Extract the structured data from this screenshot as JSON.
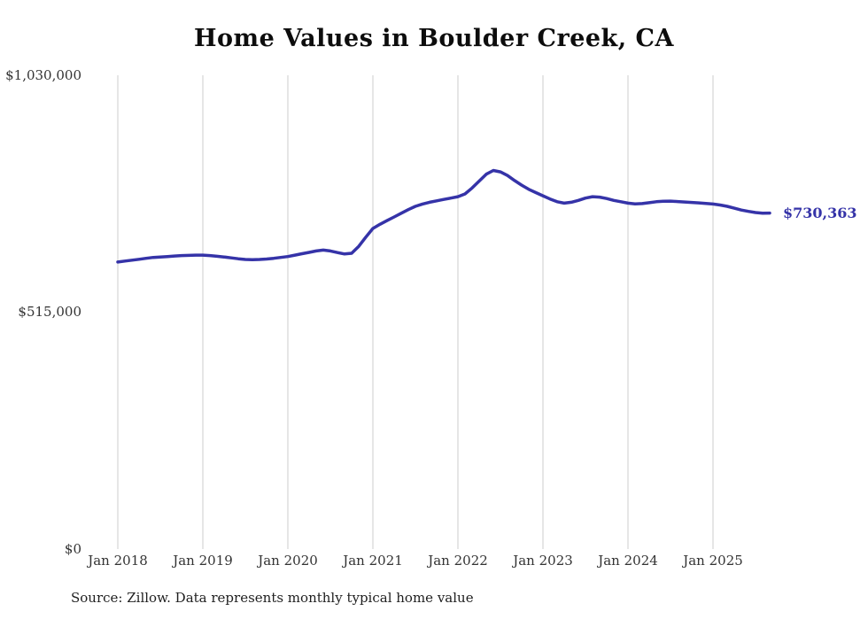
{
  "chart_data": {
    "type": "line",
    "title": "Home Values in Boulder Creek, CA",
    "series_name": "Typical home value",
    "x_interval": "monthly",
    "x_start": "2018-01",
    "x_end": "2025-09",
    "x_ticks": [
      "Jan 2018",
      "Jan 2019",
      "Jan 2020",
      "Jan 2021",
      "Jan 2022",
      "Jan 2023",
      "Jan 2024",
      "Jan 2025"
    ],
    "y_ticks": [
      "$0",
      "$515,000",
      "$1,030,000"
    ],
    "ylim": [
      0,
      1030000
    ],
    "grid": "vertical-only",
    "line_color": "#3533a8",
    "grid_color": "#cccccc",
    "end_label": "$730,363",
    "end_value": 730363,
    "values": [
      624000,
      626000,
      628000,
      630000,
      632000,
      634000,
      635000,
      636000,
      637000,
      638000,
      638500,
      639000,
      639000,
      638000,
      636500,
      635000,
      633000,
      631000,
      629500,
      629000,
      629500,
      630500,
      632000,
      634000,
      636000,
      639000,
      642000,
      645000,
      648000,
      650000,
      648000,
      644500,
      641500,
      643000,
      658000,
      678000,
      697000,
      706000,
      714000,
      722000,
      730000,
      738000,
      745000,
      750000,
      754000,
      757000,
      760000,
      763000,
      766000,
      772000,
      785000,
      800000,
      815000,
      823000,
      820000,
      812000,
      801000,
      791000,
      782000,
      775000,
      768000,
      761000,
      755000,
      752000,
      754000,
      758000,
      763000,
      766000,
      765000,
      762000,
      758000,
      755000,
      752000,
      750500,
      751000,
      753000,
      755000,
      756000,
      756500,
      755500,
      754500,
      753500,
      752500,
      751500,
      750000,
      748000,
      745000,
      741000,
      737000,
      734000,
      731500,
      730000,
      730363
    ]
  },
  "source": "Source: Zillow. Data represents monthly typical home value"
}
